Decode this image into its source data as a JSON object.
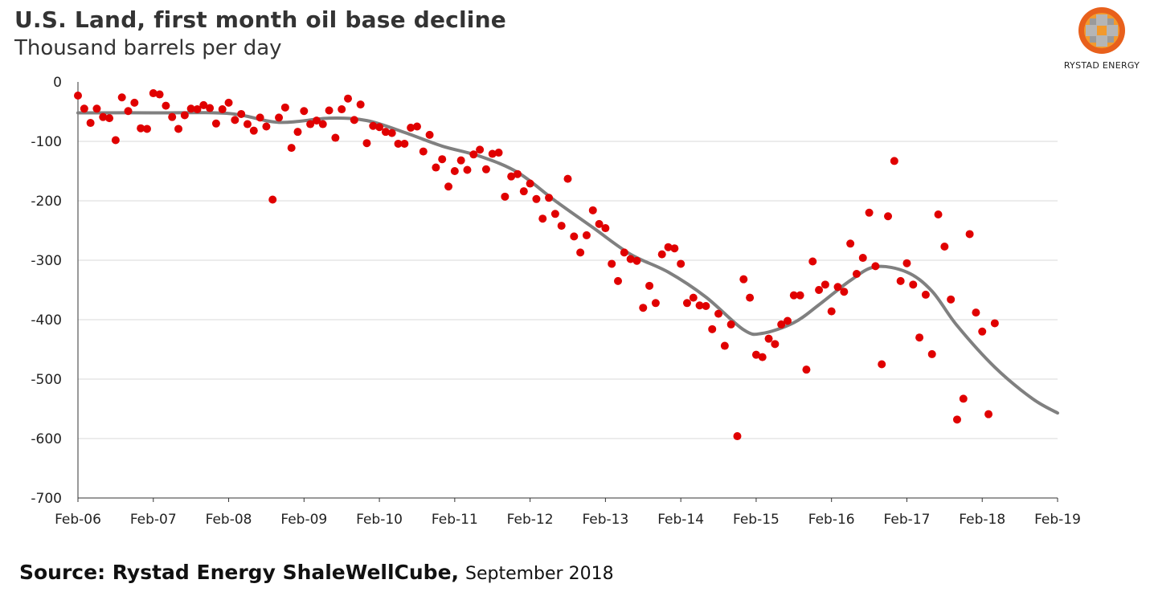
{
  "header": {
    "title": "U.S. Land, first month oil base decline",
    "subtitle": "Thousand barrels per day"
  },
  "logo": {
    "text": "RYSTAD ENERGY",
    "colors": [
      "#e8601c",
      "#f29a2e",
      "#9a9a9a"
    ]
  },
  "footer": {
    "source": "Source: Rystad Energy ShaleWellCube,",
    "date": "September 2018"
  },
  "chart_data": {
    "type": "scatter",
    "title": "U.S. Land, first month oil base decline",
    "ylabel": "Thousand barrels per day",
    "x_ticks": [
      "Feb-06",
      "Feb-07",
      "Feb-08",
      "Feb-09",
      "Feb-10",
      "Feb-11",
      "Feb-12",
      "Feb-13",
      "Feb-14",
      "Feb-15",
      "Feb-16",
      "Feb-17",
      "Feb-18",
      "Feb-19"
    ],
    "y_ticks": [
      "0",
      "-100",
      "-200",
      "-300",
      "-400",
      "-500",
      "-600",
      "-700"
    ],
    "xlim": [
      "2006-02",
      "2019-02"
    ],
    "ylim": [
      -700,
      0
    ],
    "grid": "horizontal",
    "colors": {
      "points": "#e00000",
      "trend": "#808080",
      "grid": "#d9d9d9"
    },
    "series": [
      {
        "kind": "points",
        "values": [
          [
            "2006-02",
            -23
          ],
          [
            "2006-03",
            -45
          ],
          [
            "2006-04",
            -69
          ],
          [
            "2006-05",
            -45
          ],
          [
            "2006-06",
            -59
          ],
          [
            "2006-07",
            -61
          ],
          [
            "2006-08",
            -98
          ],
          [
            "2006-09",
            -26
          ],
          [
            "2006-10",
            -49
          ],
          [
            "2006-11",
            -35
          ],
          [
            "2006-12",
            -78
          ],
          [
            "2007-01",
            -79
          ],
          [
            "2007-02",
            -19
          ],
          [
            "2007-03",
            -21
          ],
          [
            "2007-04",
            -40
          ],
          [
            "2007-05",
            -59
          ],
          [
            "2007-06",
            -79
          ],
          [
            "2007-07",
            -56
          ],
          [
            "2007-08",
            -45
          ],
          [
            "2007-09",
            -46
          ],
          [
            "2007-10",
            -39
          ],
          [
            "2007-11",
            -44
          ],
          [
            "2007-12",
            -70
          ],
          [
            "2008-01",
            -46
          ],
          [
            "2008-02",
            -35
          ],
          [
            "2008-03",
            -64
          ],
          [
            "2008-04",
            -54
          ],
          [
            "2008-05",
            -71
          ],
          [
            "2008-06",
            -82
          ],
          [
            "2008-07",
            -60
          ],
          [
            "2008-08",
            -75
          ],
          [
            "2008-09",
            -198
          ],
          [
            "2008-10",
            -60
          ],
          [
            "2008-11",
            -43
          ],
          [
            "2008-12",
            -111
          ],
          [
            "2009-01",
            -84
          ],
          [
            "2009-02",
            -49
          ],
          [
            "2009-03",
            -71
          ],
          [
            "2009-04",
            -65
          ],
          [
            "2009-05",
            -71
          ],
          [
            "2009-06",
            -48
          ],
          [
            "2009-07",
            -94
          ],
          [
            "2009-08",
            -46
          ],
          [
            "2009-09",
            -28
          ],
          [
            "2009-10",
            -64
          ],
          [
            "2009-11",
            -38
          ],
          [
            "2009-12",
            -103
          ],
          [
            "2010-01",
            -74
          ],
          [
            "2010-02",
            -76
          ],
          [
            "2010-03",
            -84
          ],
          [
            "2010-04",
            -86
          ],
          [
            "2010-05",
            -104
          ],
          [
            "2010-06",
            -104
          ],
          [
            "2010-07",
            -77
          ],
          [
            "2010-08",
            -75
          ],
          [
            "2010-09",
            -117
          ],
          [
            "2010-10",
            -89
          ],
          [
            "2010-11",
            -144
          ],
          [
            "2010-12",
            -130
          ],
          [
            "2011-01",
            -176
          ],
          [
            "2011-02",
            -150
          ],
          [
            "2011-03",
            -132
          ],
          [
            "2011-04",
            -148
          ],
          [
            "2011-05",
            -122
          ],
          [
            "2011-06",
            -114
          ],
          [
            "2011-07",
            -147
          ],
          [
            "2011-08",
            -121
          ],
          [
            "2011-09",
            -119
          ],
          [
            "2011-10",
            -193
          ],
          [
            "2011-11",
            -159
          ],
          [
            "2011-12",
            -155
          ],
          [
            "2012-01",
            -184
          ],
          [
            "2012-02",
            -171
          ],
          [
            "2012-03",
            -197
          ],
          [
            "2012-04",
            -230
          ],
          [
            "2012-05",
            -195
          ],
          [
            "2012-06",
            -222
          ],
          [
            "2012-07",
            -242
          ],
          [
            "2012-08",
            -163
          ],
          [
            "2012-09",
            -260
          ],
          [
            "2012-10",
            -287
          ],
          [
            "2012-11",
            -258
          ],
          [
            "2012-12",
            -216
          ],
          [
            "2013-01",
            -239
          ],
          [
            "2013-02",
            -246
          ],
          [
            "2013-03",
            -306
          ],
          [
            "2013-04",
            -335
          ],
          [
            "2013-05",
            -287
          ],
          [
            "2013-06",
            -298
          ],
          [
            "2013-07",
            -301
          ],
          [
            "2013-08",
            -380
          ],
          [
            "2013-09",
            -343
          ],
          [
            "2013-10",
            -372
          ],
          [
            "2013-11",
            -290
          ],
          [
            "2013-12",
            -278
          ],
          [
            "2014-01",
            -280
          ],
          [
            "2014-02",
            -306
          ],
          [
            "2014-03",
            -372
          ],
          [
            "2014-04",
            -363
          ],
          [
            "2014-05",
            -376
          ],
          [
            "2014-06",
            -377
          ],
          [
            "2014-07",
            -416
          ],
          [
            "2014-08",
            -390
          ],
          [
            "2014-09",
            -444
          ],
          [
            "2014-10",
            -408
          ],
          [
            "2014-11",
            -596
          ],
          [
            "2014-12",
            -332
          ],
          [
            "2015-01",
            -363
          ],
          [
            "2015-02",
            -459
          ],
          [
            "2015-03",
            -463
          ],
          [
            "2015-04",
            -432
          ],
          [
            "2015-05",
            -441
          ],
          [
            "2015-06",
            -408
          ],
          [
            "2015-07",
            -402
          ],
          [
            "2015-08",
            -359
          ],
          [
            "2015-09",
            -359
          ],
          [
            "2015-10",
            -484
          ],
          [
            "2015-11",
            -302
          ],
          [
            "2015-12",
            -350
          ],
          [
            "2016-01",
            -341
          ],
          [
            "2016-02",
            -386
          ],
          [
            "2016-03",
            -345
          ],
          [
            "2016-04",
            -353
          ],
          [
            "2016-05",
            -272
          ],
          [
            "2016-06",
            -323
          ],
          [
            "2016-07",
            -296
          ],
          [
            "2016-08",
            -220
          ],
          [
            "2016-09",
            -310
          ],
          [
            "2016-10",
            -475
          ],
          [
            "2016-11",
            -226
          ],
          [
            "2016-12",
            -133
          ],
          [
            "2017-01",
            -335
          ],
          [
            "2017-02",
            -305
          ],
          [
            "2017-03",
            -341
          ],
          [
            "2017-04",
            -430
          ],
          [
            "2017-05",
            -358
          ],
          [
            "2017-06",
            -458
          ],
          [
            "2017-07",
            -223
          ],
          [
            "2017-08",
            -277
          ],
          [
            "2017-09",
            -366
          ],
          [
            "2017-10",
            -568
          ],
          [
            "2017-11",
            -533
          ],
          [
            "2017-12",
            -256
          ],
          [
            "2018-01",
            -388
          ],
          [
            "2018-02",
            -420
          ],
          [
            "2018-03",
            -559
          ],
          [
            "2018-04",
            -406
          ]
        ]
      },
      {
        "kind": "trend",
        "values": [
          [
            "2006-02",
            -52
          ],
          [
            "2007-02",
            -52
          ],
          [
            "2008-02",
            -53
          ],
          [
            "2008-10",
            -68
          ],
          [
            "2009-06",
            -61
          ],
          [
            "2009-12",
            -65
          ],
          [
            "2010-06",
            -85
          ],
          [
            "2010-12",
            -108
          ],
          [
            "2011-06",
            -125
          ],
          [
            "2011-12",
            -152
          ],
          [
            "2012-06",
            -200
          ],
          [
            "2012-12",
            -245
          ],
          [
            "2013-06",
            -290
          ],
          [
            "2013-12",
            -320
          ],
          [
            "2014-06",
            -362
          ],
          [
            "2014-12",
            -417
          ],
          [
            "2015-03",
            -423
          ],
          [
            "2015-08",
            -405
          ],
          [
            "2015-12",
            -375
          ],
          [
            "2016-05",
            -334
          ],
          [
            "2016-09",
            -311
          ],
          [
            "2017-02",
            -320
          ],
          [
            "2017-06",
            -352
          ],
          [
            "2017-10",
            -410
          ],
          [
            "2018-04",
            -480
          ],
          [
            "2018-10",
            -533
          ],
          [
            "2019-02",
            -557
          ]
        ]
      }
    ]
  }
}
